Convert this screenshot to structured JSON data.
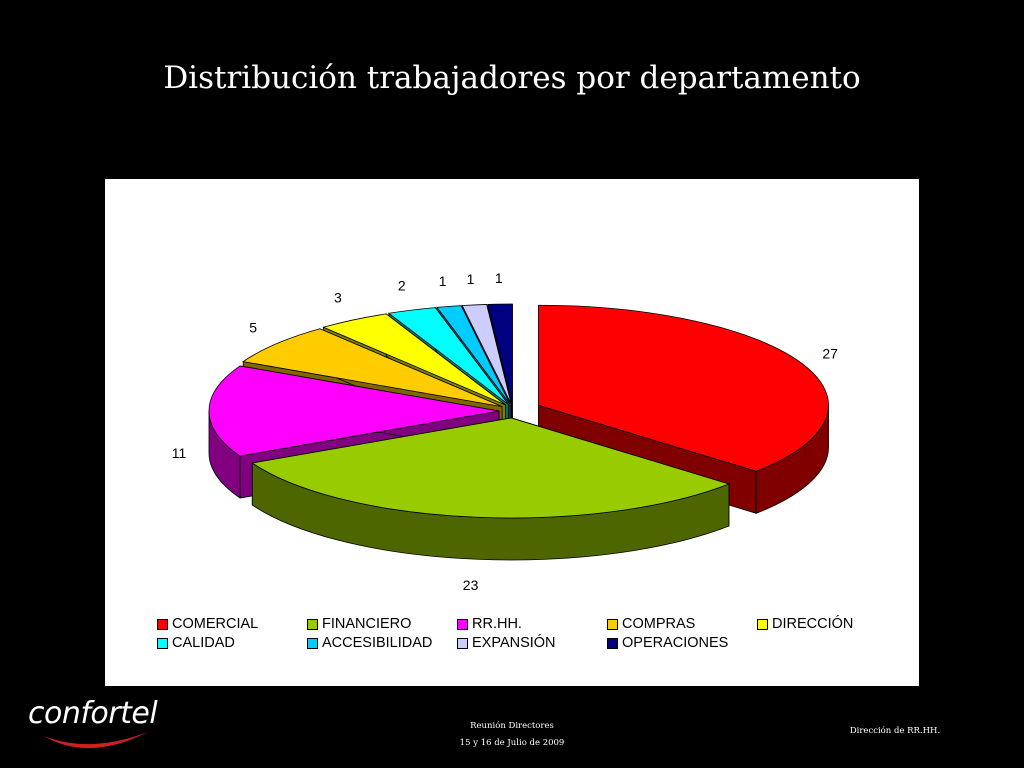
{
  "slide": {
    "title": "Distribución trabajadores por departamento"
  },
  "chart_data": {
    "type": "pie",
    "title": "",
    "categories": [
      "COMERCIAL",
      "FINANCIERO",
      "RR.HH.",
      "COMPRAS",
      "DIRECCIÓN",
      "CALIDAD",
      "ACCESIBILIDAD",
      "EXPANSIÓN",
      "OPERACIONES"
    ],
    "values": [
      27,
      23,
      11,
      5,
      3,
      2,
      1,
      1,
      1
    ],
    "colors": [
      "#ff0000",
      "#99cc00",
      "#ff00ff",
      "#ffcc00",
      "#ffff00",
      "#00ffff",
      "#00ccff",
      "#ccccff",
      "#000080"
    ],
    "style": "3D exploded",
    "legend_position": "bottom"
  },
  "footer": {
    "logo_text": "confortel",
    "meeting": "Reunión Directores",
    "date": "15 y 16 de Julio de 2009",
    "department": "Dirección de RR.HH."
  },
  "icons": {
    "logo": "confortel-logo"
  }
}
